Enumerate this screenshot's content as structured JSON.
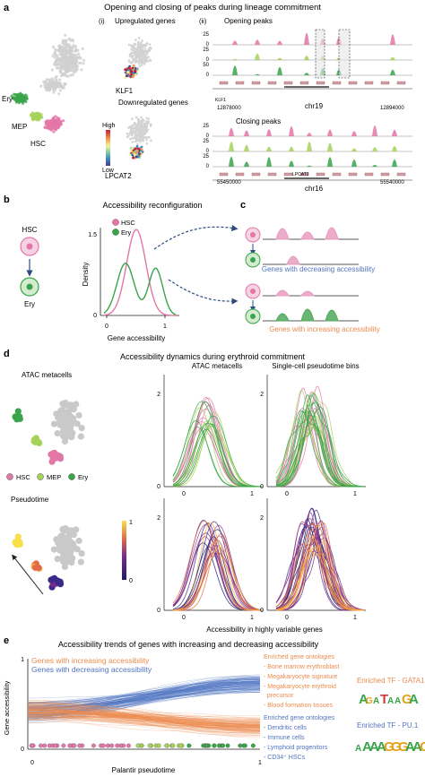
{
  "panel_a": {
    "letter": "a",
    "title": "Opening and closing of peaks during lineage commitment",
    "sub_i": "(i)",
    "sub_i_title": "Upregulated genes",
    "sub_ii": "(ii)",
    "sub_ii_title": "Opening peaks",
    "down_title": "Downregulated genes",
    "gene_up": "KLF1",
    "gene_down": "LPCAT2",
    "colorbar_high": "High",
    "colorbar_low": "Low",
    "cell_labels": [
      "Ery",
      "MEP",
      "HSC"
    ],
    "opening_track_y": [
      "25",
      "0",
      "25",
      "0",
      "50",
      "0"
    ],
    "opening_x_start": "12878000",
    "opening_x_end": "12894000",
    "opening_chr": "chr19",
    "opening_gene": "KLF1",
    "closing_title": "Closing peaks",
    "closing_track_y": [
      "25",
      "0",
      "25",
      "0",
      "25",
      "0"
    ],
    "closing_x_start": "55450000",
    "closing_x_end": "55540000",
    "closing_chr": "chr16",
    "closing_gene": "LPCAT2"
  },
  "panel_b": {
    "letter": "b",
    "title": "Accessibility reconfiguration",
    "hsc": "HSC",
    "ery": "Ery",
    "ylabel": "Density",
    "xlabel": "Gene accessibility",
    "y_tick": "1.5",
    "y_tick0": "0",
    "x_ticks": [
      "0",
      "1"
    ],
    "legend": [
      "HSC",
      "Ery"
    ]
  },
  "panel_c": {
    "letter": "c",
    "decreasing": "Genes with decreasing accessibility",
    "increasing": "Genes with increasing accessibility"
  },
  "panel_d": {
    "letter": "d",
    "title": "Accessibility dynamics during erythroid commitment",
    "atac_metacells": "ATAC metacells",
    "atac_metacells_col": "ATAC metacells",
    "sc_bins": "Single-cell pseudotime bins",
    "legend": [
      "HSC",
      "MEP",
      "Ery"
    ],
    "pseudotime": "Pseudotime",
    "cb_ticks": [
      "1",
      "0"
    ],
    "y_ticks": [
      "2",
      "0"
    ],
    "x_ticks": [
      "0",
      "1"
    ],
    "xlabel": "Accessibility in highly variable genes"
  },
  "panel_e": {
    "letter": "e",
    "title": "Accessibility trends of genes with increasing and decreasing accessibility",
    "series_inc": "Genes with increasing accessibility",
    "series_dec": "Genes with decreasing accessibility",
    "ylabel": "Gene accessibility",
    "xlabel": "Palantir pseudotime",
    "y_ticks": [
      "1",
      "0"
    ],
    "x_ticks": [
      "0",
      "1"
    ],
    "go_inc_title": "Enriched gene ontologies",
    "go_inc": [
      "- Bone marrow erythroblast",
      "- Megakaryocyte signature",
      "- Megakaryocyte erythroid",
      "  precursor",
      "- Blood formation tissues"
    ],
    "go_dec_title": "Enriched gene ontologies",
    "go_dec": [
      "- Dendritic cells",
      "- Immune cells",
      "- Lymphoid progenitors",
      "- CD34⁺ HSCs"
    ],
    "tf_inc": "Enriched TF - GATA1",
    "tf_dec": "Enriched TF - PU.1",
    "motif_inc": "AGATAAGA",
    "motif_dec": "AAAAGGGAAGTG"
  },
  "colors": {
    "hsc": "#e377a8",
    "mep": "#a6d25a",
    "ery": "#3aa44a",
    "inc": "#ec8b4e",
    "dec": "#4f74c1",
    "arrow": "#2b4c7e"
  }
}
